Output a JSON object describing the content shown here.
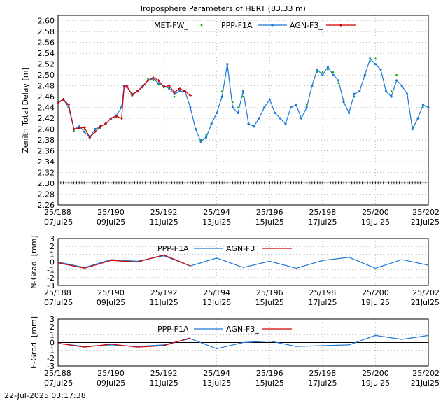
{
  "title": "Troposphere Parameters of HERT (83.33 m)",
  "timestamp": "22-Jul-2025 03:17:38",
  "x_ticks": [
    {
      "doy": "25/188",
      "date": "07Jul25"
    },
    {
      "doy": "25/190",
      "date": "09Jul25"
    },
    {
      "doy": "25/192",
      "date": "11Jul25"
    },
    {
      "doy": "25/194",
      "date": "13Jul25"
    },
    {
      "doy": "25/196",
      "date": "15Jul25"
    },
    {
      "doy": "25/198",
      "date": "17Jul25"
    },
    {
      "doy": "25/200",
      "date": "19Jul25"
    },
    {
      "doy": "25/202",
      "date": "21Jul25"
    }
  ],
  "colors": {
    "met": "#00b400",
    "ppp": "#1f77d4",
    "agn": "#d40000",
    "ref": "#000000",
    "grid": "#999999"
  },
  "chart_data": [
    {
      "type": "line",
      "name": "ztd",
      "ylabel": "Zenith Total Delay [m]",
      "xlim": [
        188,
        202
      ],
      "ylim": [
        2.26,
        2.61
      ],
      "yticks": [
        "2.26",
        "2.28",
        "2.30",
        "2.32",
        "2.34",
        "2.36",
        "2.38",
        "2.40",
        "2.42",
        "2.44",
        "2.46",
        "2.48",
        "2.50",
        "2.52",
        "2.54",
        "2.56",
        "2.58",
        "2.60"
      ],
      "grid": true,
      "legend": "top-center",
      "series": [
        {
          "name": "MET-FW_",
          "style": "dots",
          "x": [
            188.0,
            188.2,
            188.4,
            188.6,
            188.8,
            189.0,
            189.2,
            189.4,
            189.6,
            189.8,
            190.0,
            190.2,
            190.4,
            190.5,
            190.6,
            190.8,
            191.0,
            191.2,
            191.4,
            191.6,
            191.8,
            192.0,
            192.2,
            192.4,
            192.6,
            192.8,
            193.0,
            193.2,
            193.4,
            193.6,
            193.8,
            194.0,
            194.2,
            194.4,
            194.6,
            194.8,
            195.0,
            195.2,
            195.4,
            195.6,
            195.8,
            196.0,
            196.2,
            196.4,
            196.6,
            196.8,
            197.0,
            197.2,
            197.4,
            197.6,
            197.8,
            198.0,
            198.2,
            198.4,
            198.6,
            198.8,
            199.0,
            199.2,
            199.4,
            199.6,
            199.8,
            200.0,
            200.2,
            200.4,
            200.6,
            200.8,
            201.0,
            201.2,
            201.4,
            201.6,
            201.8,
            202.0
          ],
          "y": [
            2.45,
            2.453,
            2.44,
            2.396,
            2.402,
            2.4,
            2.383,
            2.398,
            2.402,
            2.41,
            2.418,
            2.422,
            2.442,
            2.48,
            2.478,
            2.462,
            2.47,
            2.48,
            2.493,
            2.49,
            2.483,
            2.477,
            2.475,
            2.46,
            2.47,
            2.47,
            2.44,
            2.4,
            2.38,
            2.39,
            2.41,
            2.43,
            2.47,
            2.51,
            2.45,
            2.44,
            2.46,
            2.41,
            2.405,
            2.42,
            2.44,
            2.455,
            2.43,
            2.42,
            2.41,
            2.44,
            2.445,
            2.42,
            2.445,
            2.48,
            2.505,
            2.505,
            2.51,
            2.505,
            2.485,
            2.455,
            2.43,
            2.46,
            2.47,
            2.5,
            2.525,
            2.53,
            2.51,
            2.47,
            2.47,
            2.5,
            2.48,
            2.465,
            2.405,
            2.42,
            2.44,
            2.44
          ]
        },
        {
          "name": "PPP-F1A",
          "style": "line-dots",
          "x": [
            188.0,
            188.2,
            188.4,
            188.6,
            188.8,
            189.0,
            189.2,
            189.4,
            189.6,
            189.8,
            190.0,
            190.2,
            190.4,
            190.5,
            190.6,
            190.8,
            191.0,
            191.2,
            191.4,
            191.6,
            191.8,
            192.0,
            192.2,
            192.4,
            192.6,
            192.8,
            193.0,
            193.2,
            193.4,
            193.6,
            193.8,
            194.0,
            194.2,
            194.4,
            194.6,
            194.8,
            195.0,
            195.2,
            195.4,
            195.6,
            195.8,
            196.0,
            196.2,
            196.4,
            196.6,
            196.8,
            197.0,
            197.2,
            197.4,
            197.6,
            197.8,
            198.0,
            198.2,
            198.4,
            198.6,
            198.8,
            199.0,
            199.2,
            199.4,
            199.6,
            199.8,
            200.0,
            200.2,
            200.4,
            200.6,
            200.8,
            201.0,
            201.2,
            201.4,
            201.6,
            201.8,
            202.0
          ],
          "y": [
            2.45,
            2.455,
            2.44,
            2.4,
            2.405,
            2.395,
            2.385,
            2.4,
            2.405,
            2.41,
            2.42,
            2.425,
            2.44,
            2.48,
            2.478,
            2.465,
            2.47,
            2.48,
            2.49,
            2.493,
            2.485,
            2.48,
            2.475,
            2.465,
            2.47,
            2.47,
            2.44,
            2.4,
            2.377,
            2.385,
            2.41,
            2.43,
            2.46,
            2.52,
            2.44,
            2.43,
            2.47,
            2.41,
            2.405,
            2.42,
            2.44,
            2.455,
            2.43,
            2.42,
            2.41,
            2.44,
            2.445,
            2.42,
            2.44,
            2.48,
            2.51,
            2.5,
            2.515,
            2.5,
            2.49,
            2.45,
            2.43,
            2.465,
            2.47,
            2.5,
            2.53,
            2.52,
            2.51,
            2.47,
            2.46,
            2.49,
            2.48,
            2.465,
            2.4,
            2.42,
            2.445,
            2.44
          ]
        },
        {
          "name": "AGN-F3_",
          "style": "line-cross",
          "x": [
            188.0,
            188.2,
            188.4,
            188.6,
            188.8,
            189.0,
            189.2,
            189.4,
            189.6,
            189.8,
            190.0,
            190.2,
            190.4,
            190.5,
            190.6,
            190.8,
            191.0,
            191.2,
            191.4,
            191.6,
            191.8,
            192.0,
            192.2,
            192.4,
            192.6,
            192.8,
            193.0
          ],
          "y": [
            2.448,
            2.455,
            2.445,
            2.4,
            2.402,
            2.403,
            2.385,
            2.395,
            2.405,
            2.41,
            2.42,
            2.424,
            2.42,
            2.478,
            2.48,
            2.463,
            2.47,
            2.478,
            2.49,
            2.495,
            2.49,
            2.478,
            2.48,
            2.468,
            2.475,
            2.47,
            2.462
          ]
        },
        {
          "name": "",
          "style": "reference",
          "x": [
            188,
            202
          ],
          "y": [
            2.301,
            2.301
          ]
        }
      ]
    },
    {
      "type": "line",
      "name": "ngrad",
      "ylabel": "N-Grad. [mm]",
      "xlim": [
        188,
        202
      ],
      "ylim": [
        -3,
        3
      ],
      "yticks": [
        "-3",
        "-2",
        "-1",
        "0",
        "1",
        "2",
        "3"
      ],
      "grid": true,
      "legend": "top-center",
      "series": [
        {
          "name": "PPP-F1A",
          "x": [
            188,
            189,
            190,
            191,
            192,
            193,
            194,
            195,
            196,
            197,
            198,
            199,
            200,
            201,
            202
          ],
          "y": [
            0.0,
            -0.7,
            0.3,
            0.1,
            0.8,
            -0.5,
            0.5,
            -0.7,
            0.1,
            -0.8,
            0.2,
            0.6,
            -0.8,
            0.3,
            -0.4
          ]
        },
        {
          "name": "AGN-F3_",
          "x": [
            188,
            189,
            190,
            191,
            192,
            193
          ],
          "y": [
            -0.1,
            -0.8,
            0.2,
            0.0,
            0.9,
            -0.5
          ]
        }
      ]
    },
    {
      "type": "line",
      "name": "egrad",
      "ylabel": "E-Grad. [mm]",
      "xlim": [
        188,
        202
      ],
      "ylim": [
        -3,
        3
      ],
      "yticks": [
        "-3",
        "-2",
        "-1",
        "0",
        "1",
        "2",
        "3"
      ],
      "grid": true,
      "legend": "top-center",
      "series": [
        {
          "name": "PPP-F1A",
          "x": [
            188,
            189,
            190,
            191,
            192,
            193,
            194,
            195,
            196,
            197,
            198,
            199,
            200,
            201,
            202
          ],
          "y": [
            -0.1,
            -0.5,
            -0.3,
            -0.5,
            -0.3,
            0.5,
            -0.8,
            0.0,
            0.2,
            -0.5,
            -0.4,
            -0.3,
            0.9,
            0.4,
            0.9
          ]
        },
        {
          "name": "AGN-F3_",
          "x": [
            188,
            189,
            190,
            191,
            192,
            193
          ],
          "y": [
            -0.1,
            -0.6,
            -0.2,
            -0.6,
            -0.4,
            0.6
          ]
        }
      ]
    }
  ]
}
